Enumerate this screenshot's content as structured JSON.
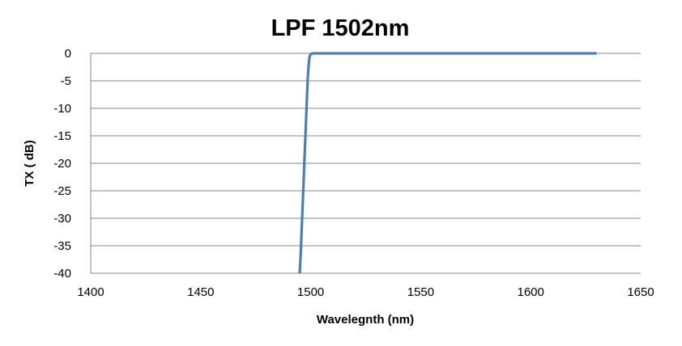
{
  "chart_data": {
    "type": "line",
    "title": "LPF 1502nm",
    "xlabel": "Wavelegnth (nm)",
    "ylabel": "TX ( dB)",
    "xlim": [
      1400,
      1650
    ],
    "ylim": [
      -40,
      0
    ],
    "xticks": [
      1400,
      1450,
      1500,
      1550,
      1600,
      1650
    ],
    "yticks": [
      0,
      -5,
      -10,
      -15,
      -20,
      -25,
      -30,
      -35,
      -40
    ],
    "grid": "horizontal",
    "legend": "none",
    "series": [
      {
        "color": "#4a7ebb",
        "x": [
          1495.0,
          1495.5,
          1496.0,
          1496.5,
          1497.0,
          1497.5,
          1498.0,
          1498.3,
          1498.6,
          1498.9,
          1499.2,
          1499.5,
          1500.0,
          1501.0,
          1520,
          1550,
          1580,
          1600,
          1630
        ],
        "y": [
          -40,
          -36,
          -31,
          -26,
          -21,
          -16,
          -11,
          -8,
          -5,
          -3,
          -1.5,
          -0.6,
          -0.15,
          0,
          0,
          0,
          0,
          0,
          0
        ]
      }
    ]
  }
}
